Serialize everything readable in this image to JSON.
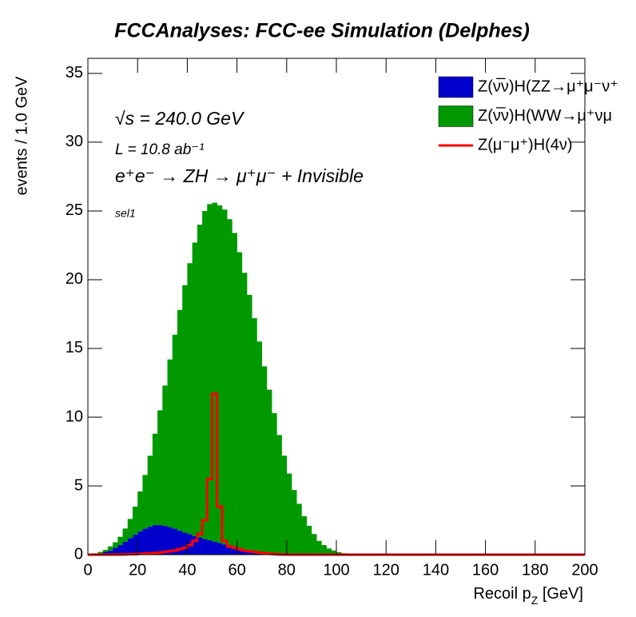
{
  "chart_data": {
    "type": "histogram",
    "title": "FCCAnalyses: FCC-ee Simulation (Delphes)",
    "x_label": [
      "Recoil p",
      "Z",
      " [GeV]"
    ],
    "y_label": "events / 1.0 GeV",
    "annotations": [
      "√s = 240.0 GeV",
      "L = 10.8 ab⁻¹",
      "e⁺e⁻ → ZH → μ⁺μ⁻ + Invisible",
      "sel1"
    ],
    "bins": [
      0,
      2,
      4,
      6,
      8,
      10,
      12,
      14,
      16,
      18,
      20,
      22,
      24,
      26,
      28,
      30,
      32,
      34,
      36,
      38,
      40,
      42,
      44,
      46,
      48,
      50,
      52,
      54,
      56,
      58,
      60,
      62,
      64,
      66,
      68,
      70,
      72,
      74,
      76,
      78,
      80,
      82,
      84,
      86,
      88,
      90,
      92,
      94,
      96,
      98,
      100,
      102,
      104,
      106,
      108,
      110,
      112,
      114,
      116,
      118,
      120,
      122,
      124,
      126,
      128,
      130,
      132,
      134,
      136,
      138,
      140,
      142,
      144,
      146,
      148,
      150,
      152,
      154,
      156,
      158,
      160,
      162,
      164,
      166,
      168,
      170,
      172,
      174,
      176,
      178,
      180,
      182,
      184,
      186,
      188,
      190,
      192,
      194,
      196,
      198,
      200
    ],
    "series": [
      {
        "name": "Z(ν̅ν)H(ZZ→μ⁺μ⁻ν⁺",
        "color": "#0000cc",
        "stacked": true,
        "values": [
          0.02,
          0.05,
          0.1,
          0.2,
          0.3,
          0.5,
          0.7,
          0.95,
          1.2,
          1.45,
          1.7,
          1.9,
          2.05,
          2.15,
          2.15,
          2.1,
          2.0,
          1.9,
          1.75,
          1.6,
          1.5,
          1.35,
          1.25,
          1.15,
          1.05,
          0.95,
          0.85,
          0.75,
          0.65,
          0.55,
          0.45,
          0.38,
          0.3,
          0.24,
          0.18,
          0.14,
          0.1,
          0.07,
          0.05,
          0.03,
          0.02,
          0.01,
          0,
          0,
          0,
          0,
          0,
          0,
          0,
          0,
          0,
          0,
          0,
          0,
          0,
          0,
          0,
          0,
          0,
          0,
          0,
          0,
          0,
          0,
          0,
          0,
          0,
          0,
          0,
          0,
          0,
          0,
          0,
          0,
          0,
          0,
          0,
          0,
          0,
          0,
          0,
          0,
          0,
          0,
          0,
          0,
          0,
          0,
          0,
          0,
          0,
          0,
          0,
          0,
          0,
          0,
          0,
          0,
          0,
          0
        ]
      },
      {
        "name": "Z(ν̅ν)H(WW→μ⁺νμ",
        "color": "#009900",
        "stacked": true,
        "values": [
          0.03,
          0.05,
          0.1,
          0.15,
          0.3,
          0.4,
          0.6,
          0.95,
          1.4,
          2.05,
          2.9,
          3.9,
          5.15,
          6.65,
          8.35,
          10.2,
          12.2,
          14.1,
          16.05,
          18.0,
          19.7,
          21.35,
          22.75,
          23.85,
          24.45,
          24.65,
          24.55,
          24.35,
          23.75,
          22.85,
          21.55,
          20.12,
          18.6,
          16.96,
          15.32,
          13.56,
          11.9,
          10.23,
          8.65,
          7.17,
          5.88,
          4.69,
          3.7,
          2.8,
          2.1,
          1.5,
          1.0,
          0.7,
          0.45,
          0.3,
          0.18,
          0.1,
          0.06,
          0.03,
          0.02,
          0,
          0,
          0,
          0,
          0,
          0,
          0,
          0,
          0,
          0,
          0,
          0,
          0,
          0,
          0,
          0,
          0,
          0,
          0,
          0,
          0,
          0,
          0,
          0,
          0,
          0,
          0,
          0,
          0,
          0,
          0,
          0,
          0,
          0,
          0,
          0,
          0,
          0,
          0,
          0,
          0,
          0,
          0,
          0,
          0
        ]
      },
      {
        "name": "Z(μ⁻μ⁺)H(4ν)",
        "color": "#ff0000",
        "stacked": false,
        "values": [
          0,
          0,
          0,
          0,
          0,
          0.01,
          0.01,
          0.02,
          0.03,
          0.04,
          0.06,
          0.08,
          0.1,
          0.12,
          0.15,
          0.2,
          0.25,
          0.3,
          0.4,
          0.5,
          0.7,
          1.0,
          1.5,
          2.5,
          5.5,
          11.7,
          3.5,
          1.0,
          0.6,
          0.5,
          0.4,
          0.3,
          0.25,
          0.2,
          0.15,
          0.1,
          0.07,
          0.04,
          0.02,
          0.01,
          0,
          0,
          0,
          0,
          0,
          0,
          0,
          0,
          0,
          0,
          0,
          0,
          0,
          0,
          0,
          0,
          0,
          0,
          0,
          0,
          0,
          0,
          0,
          0,
          0,
          0,
          0,
          0,
          0,
          0,
          0,
          0,
          0,
          0,
          0,
          0,
          0,
          0,
          0,
          0,
          0,
          0,
          0,
          0,
          0,
          0,
          0,
          0,
          0,
          0,
          0,
          0,
          0,
          0,
          0,
          0,
          0,
          0,
          0,
          0
        ]
      }
    ],
    "xlim": [
      0,
      200
    ],
    "xticks": [
      0,
      20,
      40,
      60,
      80,
      100,
      120,
      140,
      160,
      180,
      200
    ],
    "ylim": [
      0,
      36.1
    ],
    "yticks": [
      0,
      5,
      10,
      15,
      20,
      25,
      30,
      35
    ],
    "legend": "top-right"
  }
}
